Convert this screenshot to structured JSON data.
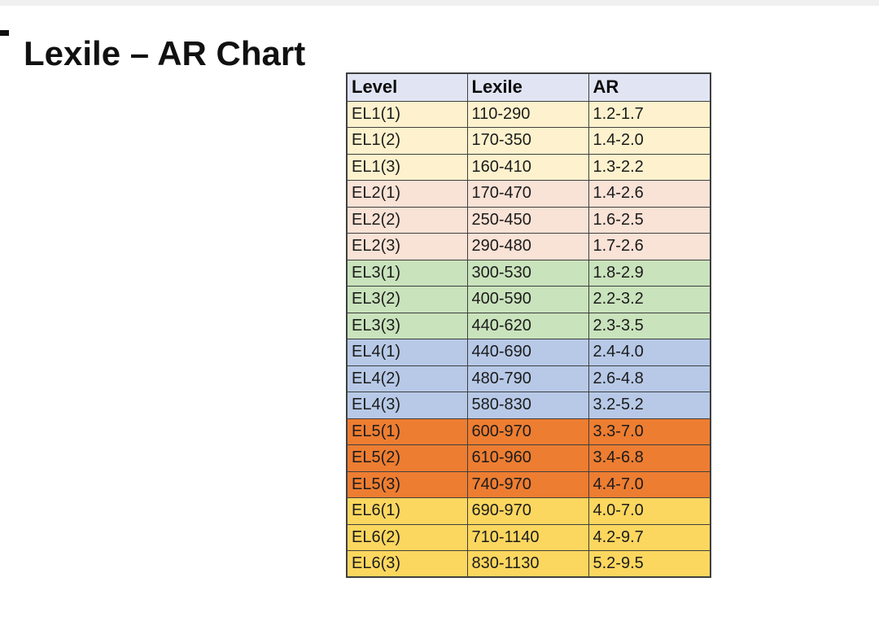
{
  "page": {
    "title": "Lexile – AR Chart"
  },
  "table": {
    "columns": [
      "Level",
      "Lexile",
      "AR"
    ],
    "rows": [
      {
        "level": "EL1(1)",
        "lexile": "110-290",
        "ar": "1.2-1.7",
        "group": "el1"
      },
      {
        "level": "EL1(2)",
        "lexile": "170-350",
        "ar": "1.4-2.0",
        "group": "el1"
      },
      {
        "level": "EL1(3)",
        "lexile": "160-410",
        "ar": "1.3-2.2",
        "group": "el1"
      },
      {
        "level": "EL2(1)",
        "lexile": "170-470",
        "ar": "1.4-2.6",
        "group": "el2"
      },
      {
        "level": "EL2(2)",
        "lexile": "250-450",
        "ar": "1.6-2.5",
        "group": "el2"
      },
      {
        "level": "EL2(3)",
        "lexile": "290-480",
        "ar": "1.7-2.6",
        "group": "el2"
      },
      {
        "level": "EL3(1)",
        "lexile": "300-530",
        "ar": "1.8-2.9",
        "group": "el3"
      },
      {
        "level": "EL3(2)",
        "lexile": "400-590",
        "ar": "2.2-3.2",
        "group": "el3"
      },
      {
        "level": "EL3(3)",
        "lexile": "440-620",
        "ar": "2.3-3.5",
        "group": "el3"
      },
      {
        "level": "EL4(1)",
        "lexile": "440-690",
        "ar": "2.4-4.0",
        "group": "el4"
      },
      {
        "level": "EL4(2)",
        "lexile": "480-790",
        "ar": "2.6-4.8",
        "group": "el4"
      },
      {
        "level": "EL4(3)",
        "lexile": "580-830",
        "ar": "3.2-5.2",
        "group": "el4"
      },
      {
        "level": "EL5(1)",
        "lexile": "600-970",
        "ar": "3.3-7.0",
        "group": "el5"
      },
      {
        "level": "EL5(2)",
        "lexile": "610-960",
        "ar": "3.4-6.8",
        "group": "el5"
      },
      {
        "level": "EL5(3)",
        "lexile": "740-970",
        "ar": "4.4-7.0",
        "group": "el5"
      },
      {
        "level": "EL6(1)",
        "lexile": "690-970",
        "ar": "4.0-7.0",
        "group": "el6"
      },
      {
        "level": "EL6(2)",
        "lexile": "710-1140",
        "ar": "4.2-9.7",
        "group": "el6"
      },
      {
        "level": "EL6(3)",
        "lexile": "830-1130",
        "ar": "5.2-9.5",
        "group": "el6"
      }
    ]
  },
  "colors": {
    "header_bg": "#e1e5f3",
    "el1_bg": "#fdf2cd",
    "el2_bg": "#f9e2d6",
    "el3_bg": "#c9e3bc",
    "el4_bg": "#b7c9e7",
    "el5_bg": "#ed7d31",
    "el6_bg": "#fcd75f",
    "border": "#3f3f3f",
    "text": "#1c1c1c",
    "top_strip": "#f0f0f0"
  }
}
